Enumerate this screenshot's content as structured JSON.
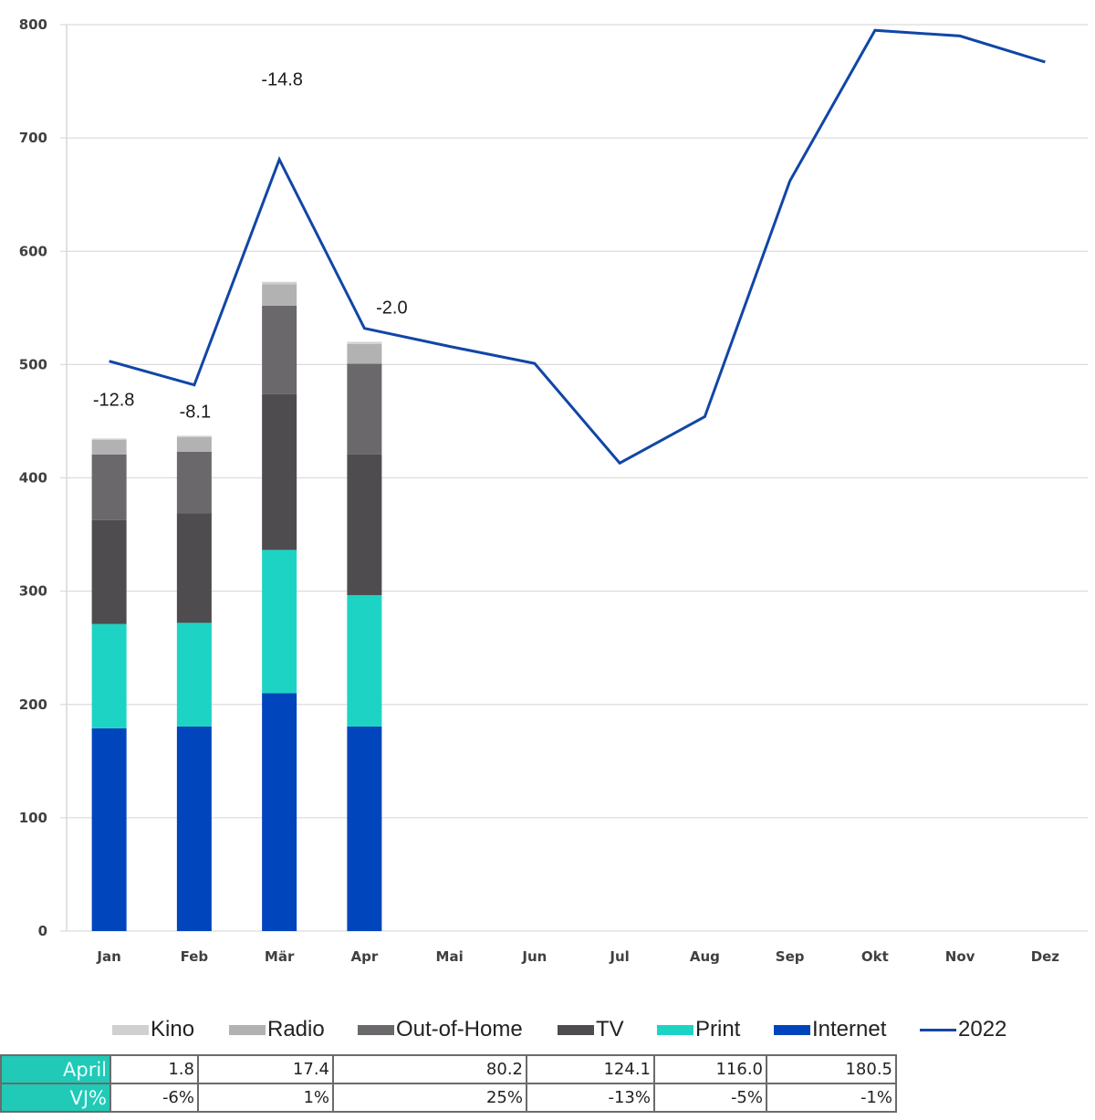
{
  "chart_data": {
    "type": "bar",
    "stacked": true,
    "categories": [
      "Jan",
      "Feb",
      "Mär",
      "Apr",
      "Mai",
      "Jun",
      "Jul",
      "Aug",
      "Sep",
      "Okt",
      "Nov",
      "Dez"
    ],
    "series": [
      {
        "name": "Internet",
        "color": "#0045bc",
        "values": [
          179,
          180.5,
          210,
          180.5,
          null,
          null,
          null,
          null,
          null,
          null,
          null,
          null
        ]
      },
      {
        "name": "Print",
        "color": "#1dd3c4",
        "values": [
          92,
          91.5,
          126.4,
          116.0,
          null,
          null,
          null,
          null,
          null,
          null,
          null,
          null
        ]
      },
      {
        "name": "TV",
        "color": "#4e4c4f",
        "values": [
          91.6,
          96.6,
          137.6,
          124.1,
          null,
          null,
          null,
          null,
          null,
          null,
          null,
          null
        ]
      },
      {
        "name": "Out-of-Home",
        "color": "#6a686b",
        "values": [
          58,
          54.4,
          78,
          80.2,
          null,
          null,
          null,
          null,
          null,
          null,
          null,
          null
        ]
      },
      {
        "name": "Radio",
        "color": "#b2b2b2",
        "values": [
          12.9,
          13,
          19,
          17.4,
          null,
          null,
          null,
          null,
          null,
          null,
          null,
          null
        ]
      },
      {
        "name": "Kino",
        "color": "#d0d0d0",
        "values": [
          1.2,
          1.2,
          2,
          1.8,
          null,
          null,
          null,
          null,
          null,
          null,
          null,
          null
        ]
      }
    ],
    "line_series": {
      "name": "2022",
      "color": "#1046a6",
      "values": [
        503,
        482,
        681,
        532,
        516,
        501,
        413,
        454,
        662,
        795,
        790,
        767
      ]
    },
    "data_labels": [
      {
        "category": "Jan",
        "text": "-12.8"
      },
      {
        "category": "Feb",
        "text": "-8.1"
      },
      {
        "category": "Mär",
        "text": "-14.8"
      },
      {
        "category": "Apr",
        "text": "-2.0"
      }
    ],
    "yticks": [
      "0",
      "100",
      "200",
      "300",
      "400",
      "500",
      "600",
      "700",
      "800"
    ],
    "ylim": [
      0,
      800
    ],
    "title": "",
    "xlabel": "",
    "ylabel": "",
    "grid": true,
    "legend": [
      "Kino",
      "Radio",
      "Out-of-Home",
      "TV",
      "Print",
      "Internet",
      "2022"
    ],
    "legend_position": "bottom"
  },
  "table": {
    "rows": [
      {
        "header": "April",
        "cells": [
          "1.8",
          "17.4",
          "80.2",
          "124.1",
          "116.0",
          "180.5"
        ]
      },
      {
        "header": "VJ%",
        "cells": [
          "-6%",
          "1%",
          "25%",
          "-13%",
          "-5%",
          "-1%"
        ]
      }
    ]
  }
}
